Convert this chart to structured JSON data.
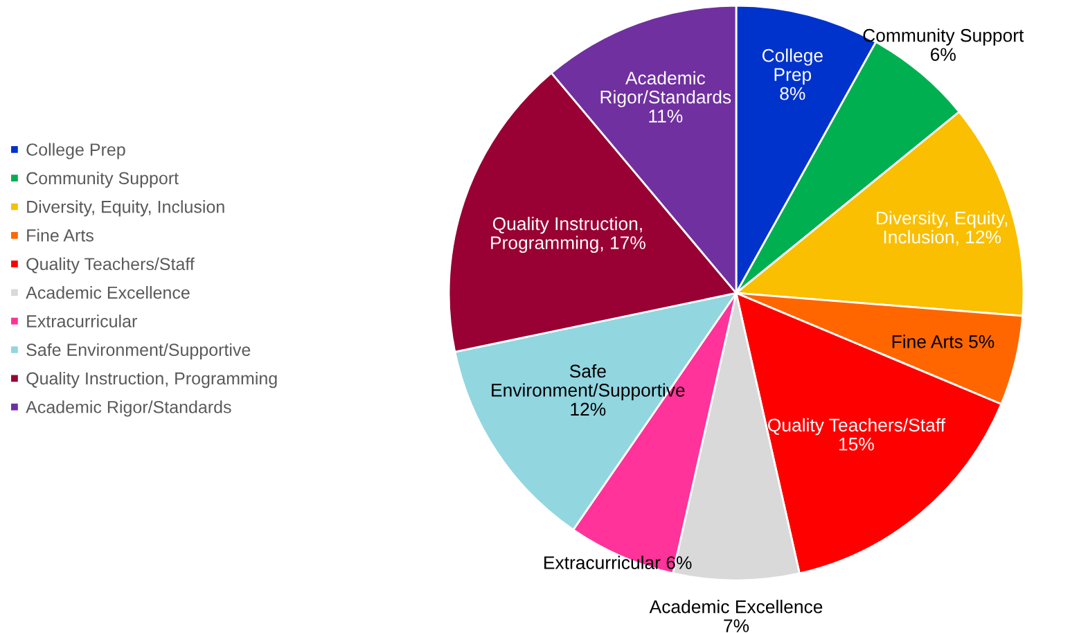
{
  "chart_data": {
    "type": "pie",
    "categories": [
      "College Prep",
      "Community Support",
      "Diversity, Equity, Inclusion",
      "Fine Arts",
      "Quality Teachers/Staff",
      "Academic Excellence",
      "Extracurricular",
      "Safe Environment/Supportive",
      "Quality Instruction, Programming",
      "Academic Rigor/Standards"
    ],
    "values": [
      8,
      6,
      12,
      5,
      15,
      7,
      6,
      12,
      17,
      11
    ],
    "colors": [
      "#0033cc",
      "#00b050",
      "#f9bf00",
      "#ff6600",
      "#ff0000",
      "#d9d9d9",
      "#ff3399",
      "#92d6e0",
      "#990033",
      "#7030a0"
    ],
    "value_labels": [
      "College Prep 8%",
      "Community Support 6%",
      "Diversity, Equity, Inclusion, 12%",
      "Fine Arts 5%",
      "Quality Teachers/Staff 15%",
      "Academic Excellence 7%",
      "Extracurricular 6%",
      "Safe Environment/Supportive 12%",
      "Quality Instruction, Programming, 17%",
      "Academic Rigor/Standards 11%"
    ],
    "legend": "left"
  }
}
